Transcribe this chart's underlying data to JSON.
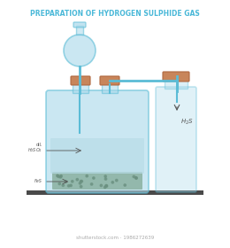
{
  "title": "PREPARATION OF HYDROGEN SULPHIDE GAS",
  "title_color": "#4ab8d8",
  "title_fontsize": 5.5,
  "bg_color": "#ffffff",
  "bottle_color": "#a8d8ea",
  "bottle_edge": "#5bbcd6",
  "cork_color": "#c8855a",
  "cork_edge": "#b06840",
  "tube_color": "#5bbcd6",
  "base_color": "#4a4a4a",
  "acid_color": "#b8dce8",
  "fes_color": "#8ab0a0",
  "label_color": "#555555",
  "h2s_label_color": "#555555",
  "watermark_color": "#aaaaaa",
  "shutterstock_text": "shutterstock.com · 1986272639"
}
